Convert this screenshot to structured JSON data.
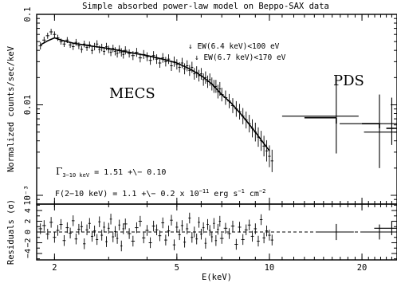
{
  "chart_data": {
    "type": "scatter",
    "title": "Simple absorbed power-law model on Beppo-SAX data",
    "xlabel": "E(keV)",
    "x_scale": "log",
    "xlim": [
      1.75,
      26
    ],
    "x_ticks": [
      {
        "value": 2,
        "label": "2"
      },
      {
        "value": 5,
        "label": "5"
      },
      {
        "value": 10,
        "label": "10"
      },
      {
        "value": 20,
        "label": "20"
      }
    ],
    "top_panel": {
      "ylabel": "Normalized counts/sec/keV",
      "y_scale": "log",
      "ylim": [
        0.0008,
        0.1
      ],
      "y_ticks": [
        {
          "value": 0.1,
          "label": "0.1"
        },
        {
          "value": 0.01,
          "label": "0.01"
        },
        {
          "value": 0.001,
          "label": "10⁻³"
        }
      ],
      "annotations": {
        "mecs_label": "MECS",
        "pds_label": "PDS",
        "ew_line1": "↓ EW(6.4 keV)<100 eV",
        "ew_line2": "↓ EW(6.7 keV)<170 eV",
        "gamma_symbol": "Γ",
        "gamma_sub": "3−10 keV",
        "gamma_value": " = 1.51 +\\− 0.10",
        "flux_main": "F(2−10 keV) = 1.1 +\\− 0.2 x 10",
        "flux_exp1": "−11",
        "flux_unit": " erg s",
        "flux_exp2": "−1",
        "flux_cm": " cm",
        "flux_exp3": "−2"
      },
      "model_x": [
        1.8,
        1.9,
        2.0,
        2.1,
        2.3,
        2.6,
        3.0,
        3.5,
        4.0,
        4.5,
        5.0,
        5.5,
        6.0,
        6.5,
        7.0,
        7.5,
        8.0,
        8.5,
        9.0,
        9.5,
        10.0
      ],
      "model_y": [
        0.046,
        0.051,
        0.055,
        0.052,
        0.048,
        0.045,
        0.042,
        0.038,
        0.035,
        0.032,
        0.029,
        0.025,
        0.021,
        0.017,
        0.013,
        0.0105,
        0.0082,
        0.0064,
        0.005,
        0.0039,
        0.0031
      ],
      "mecs_points": [
        {
          "x": 1.8,
          "y": 0.045,
          "dy": 0.1
        },
        {
          "x": 1.85,
          "y": 0.052,
          "dy": 0.09
        },
        {
          "x": 1.9,
          "y": 0.058,
          "dy": 0.08
        },
        {
          "x": 1.95,
          "y": 0.064,
          "dy": 0.08
        },
        {
          "x": 2.0,
          "y": 0.06,
          "dy": 0.08
        },
        {
          "x": 2.05,
          "y": 0.055,
          "dy": 0.08
        },
        {
          "x": 2.1,
          "y": 0.05,
          "dy": 0.08
        },
        {
          "x": 2.15,
          "y": 0.047,
          "dy": 0.08
        },
        {
          "x": 2.2,
          "y": 0.052,
          "dy": 0.08
        },
        {
          "x": 2.25,
          "y": 0.046,
          "dy": 0.08
        },
        {
          "x": 2.3,
          "y": 0.044,
          "dy": 0.09
        },
        {
          "x": 2.35,
          "y": 0.049,
          "dy": 0.09
        },
        {
          "x": 2.4,
          "y": 0.045,
          "dy": 0.09
        },
        {
          "x": 2.45,
          "y": 0.041,
          "dy": 0.09
        },
        {
          "x": 2.5,
          "y": 0.047,
          "dy": 0.09
        },
        {
          "x": 2.55,
          "y": 0.043,
          "dy": 0.09
        },
        {
          "x": 2.6,
          "y": 0.046,
          "dy": 0.09
        },
        {
          "x": 2.65,
          "y": 0.04,
          "dy": 0.1
        },
        {
          "x": 2.7,
          "y": 0.044,
          "dy": 0.1
        },
        {
          "x": 2.75,
          "y": 0.047,
          "dy": 0.1
        },
        {
          "x": 2.8,
          "y": 0.041,
          "dy": 0.1
        },
        {
          "x": 2.85,
          "y": 0.043,
          "dy": 0.1
        },
        {
          "x": 2.9,
          "y": 0.039,
          "dy": 0.1
        },
        {
          "x": 2.95,
          "y": 0.044,
          "dy": 0.1
        },
        {
          "x": 3.0,
          "y": 0.041,
          "dy": 0.1
        },
        {
          "x": 3.05,
          "y": 0.038,
          "dy": 0.1
        },
        {
          "x": 3.1,
          "y": 0.042,
          "dy": 0.1
        },
        {
          "x": 3.15,
          "y": 0.039,
          "dy": 0.11
        },
        {
          "x": 3.2,
          "y": 0.037,
          "dy": 0.11
        },
        {
          "x": 3.25,
          "y": 0.041,
          "dy": 0.11
        },
        {
          "x": 3.3,
          "y": 0.038,
          "dy": 0.11
        },
        {
          "x": 3.35,
          "y": 0.036,
          "dy": 0.11
        },
        {
          "x": 3.4,
          "y": 0.04,
          "dy": 0.11
        },
        {
          "x": 3.5,
          "y": 0.037,
          "dy": 0.11
        },
        {
          "x": 3.6,
          "y": 0.035,
          "dy": 0.12
        },
        {
          "x": 3.7,
          "y": 0.038,
          "dy": 0.12
        },
        {
          "x": 3.8,
          "y": 0.033,
          "dy": 0.12
        },
        {
          "x": 3.9,
          "y": 0.036,
          "dy": 0.12
        },
        {
          "x": 4.0,
          "y": 0.034,
          "dy": 0.12
        },
        {
          "x": 4.1,
          "y": 0.031,
          "dy": 0.12
        },
        {
          "x": 4.2,
          "y": 0.035,
          "dy": 0.12
        },
        {
          "x": 4.3,
          "y": 0.032,
          "dy": 0.13
        },
        {
          "x": 4.4,
          "y": 0.029,
          "dy": 0.13
        },
        {
          "x": 4.5,
          "y": 0.033,
          "dy": 0.13
        },
        {
          "x": 4.6,
          "y": 0.03,
          "dy": 0.13
        },
        {
          "x": 4.7,
          "y": 0.032,
          "dy": 0.13
        },
        {
          "x": 4.8,
          "y": 0.027,
          "dy": 0.14
        },
        {
          "x": 4.9,
          "y": 0.03,
          "dy": 0.14
        },
        {
          "x": 5.0,
          "y": 0.028,
          "dy": 0.14
        },
        {
          "x": 5.1,
          "y": 0.026,
          "dy": 0.14
        },
        {
          "x": 5.2,
          "y": 0.029,
          "dy": 0.14
        },
        {
          "x": 5.3,
          "y": 0.025,
          "dy": 0.15
        },
        {
          "x": 5.4,
          "y": 0.027,
          "dy": 0.15
        },
        {
          "x": 5.5,
          "y": 0.024,
          "dy": 0.15
        },
        {
          "x": 5.6,
          "y": 0.026,
          "dy": 0.15
        },
        {
          "x": 5.7,
          "y": 0.022,
          "dy": 0.16
        },
        {
          "x": 5.8,
          "y": 0.023,
          "dy": 0.16
        },
        {
          "x": 5.9,
          "y": 0.021,
          "dy": 0.16
        },
        {
          "x": 6.0,
          "y": 0.022,
          "dy": 0.16
        },
        {
          "x": 6.1,
          "y": 0.019,
          "dy": 0.17
        },
        {
          "x": 6.2,
          "y": 0.02,
          "dy": 0.17
        },
        {
          "x": 6.3,
          "y": 0.018,
          "dy": 0.17
        },
        {
          "x": 6.4,
          "y": 0.019,
          "dy": 0.17
        },
        {
          "x": 6.5,
          "y": 0.017,
          "dy": 0.18
        },
        {
          "x": 6.6,
          "y": 0.016,
          "dy": 0.18
        },
        {
          "x": 6.7,
          "y": 0.016,
          "dy": 0.18
        },
        {
          "x": 6.8,
          "y": 0.014,
          "dy": 0.19
        },
        {
          "x": 6.9,
          "y": 0.015,
          "dy": 0.19
        },
        {
          "x": 7.0,
          "y": 0.013,
          "dy": 0.19
        },
        {
          "x": 7.2,
          "y": 0.012,
          "dy": 0.2
        },
        {
          "x": 7.4,
          "y": 0.011,
          "dy": 0.2
        },
        {
          "x": 7.6,
          "y": 0.0098,
          "dy": 0.21
        },
        {
          "x": 7.8,
          "y": 0.009,
          "dy": 0.22
        },
        {
          "x": 8.0,
          "y": 0.0084,
          "dy": 0.22
        },
        {
          "x": 8.2,
          "y": 0.0075,
          "dy": 0.23
        },
        {
          "x": 8.4,
          "y": 0.0068,
          "dy": 0.24
        },
        {
          "x": 8.6,
          "y": 0.0062,
          "dy": 0.25
        },
        {
          "x": 8.8,
          "y": 0.0055,
          "dy": 0.26
        },
        {
          "x": 9.0,
          "y": 0.005,
          "dy": 0.27
        },
        {
          "x": 9.2,
          "y": 0.0044,
          "dy": 0.28
        },
        {
          "x": 9.4,
          "y": 0.004,
          "dy": 0.29
        },
        {
          "x": 9.6,
          "y": 0.0035,
          "dy": 0.3
        },
        {
          "x": 9.8,
          "y": 0.0031,
          "dy": 0.31
        },
        {
          "x": 10.0,
          "y": 0.0027,
          "dy": 0.32
        },
        {
          "x": 10.2,
          "y": 0.0024,
          "dy": 0.33
        }
      ],
      "pds_bins": [
        {
          "x0": 13.0,
          "x1": 16.5,
          "xc": 16.5,
          "y": 0.0075,
          "ylo": 0.0029,
          "yhi": 0.02
        },
        {
          "x0": 20.0,
          "x1": 22.8,
          "xc": 22.8,
          "y": 0.0062,
          "ylo": 0.002,
          "yhi": 0.013
        },
        {
          "x0": 24.0,
          "x1": 26.0,
          "xc": 25.0,
          "y": 0.005,
          "ylo": 0.0036,
          "yhi": 0.012
        }
      ],
      "pds_model_y": [
        0.0072,
        0.0062,
        0.0055
      ]
    },
    "bottom_panel": {
      "ylabel": "Residuals (σ)",
      "ylim": [
        -5.2,
        5.2
      ],
      "y_ticks": [
        {
          "value": 4,
          "label": "4"
        },
        {
          "value": 2,
          "label": "2"
        },
        {
          "value": 0,
          "label": "0"
        },
        {
          "value": -2,
          "label": "−2"
        },
        {
          "value": -4,
          "label": "−4"
        }
      ],
      "residuals": [
        0.6,
        1.2,
        -0.4,
        1.8,
        -1.0,
        0.3,
        1.4,
        -1.6,
        0.8,
        -0.2,
        2.1,
        -1.3,
        0.5,
        1.0,
        -2.2,
        0.4,
        1.6,
        -0.8,
        0.2,
        -1.4,
        1.9,
        -0.6,
        0.9,
        -1.8,
        0.7,
        2.4,
        -0.9,
        0.1,
        -1.2,
        1.3,
        -2.6,
        0.6,
        1.5,
        -0.3,
        -1.7,
        0.8,
        2.0,
        -1.1,
        0.3,
        -2.0,
        1.1,
        0.4,
        -0.7,
        1.7,
        -1.5,
        0.2,
        2.2,
        -2.4,
        0.9,
        -0.5,
        1.2,
        -1.9,
        0.6,
        2.6,
        -1.0,
        0.0,
        -1.3,
        1.8,
        -0.4,
        0.8,
        -2.1,
        1.4,
        0.3,
        -0.9,
        1.6,
        -1.6,
        0.5,
        2.0,
        -1.2,
        0.7,
        -0.3,
        1.1,
        -2.3,
        0.9,
        -1.4,
        0.4,
        1.3,
        -0.8,
        0.6,
        -1.7,
        2.3,
        -1.1,
        0.2,
        -0.6,
        -1.5
      ],
      "residual_dy": 1.0,
      "pds_residuals": [
        {
          "x": 16.5,
          "y": 0.0,
          "dy": 1.5
        },
        {
          "x": 22.8,
          "y": 0.0,
          "dy": 1.4
        },
        {
          "x": 25.0,
          "y": 0.7,
          "dy": 1.3
        }
      ]
    }
  }
}
